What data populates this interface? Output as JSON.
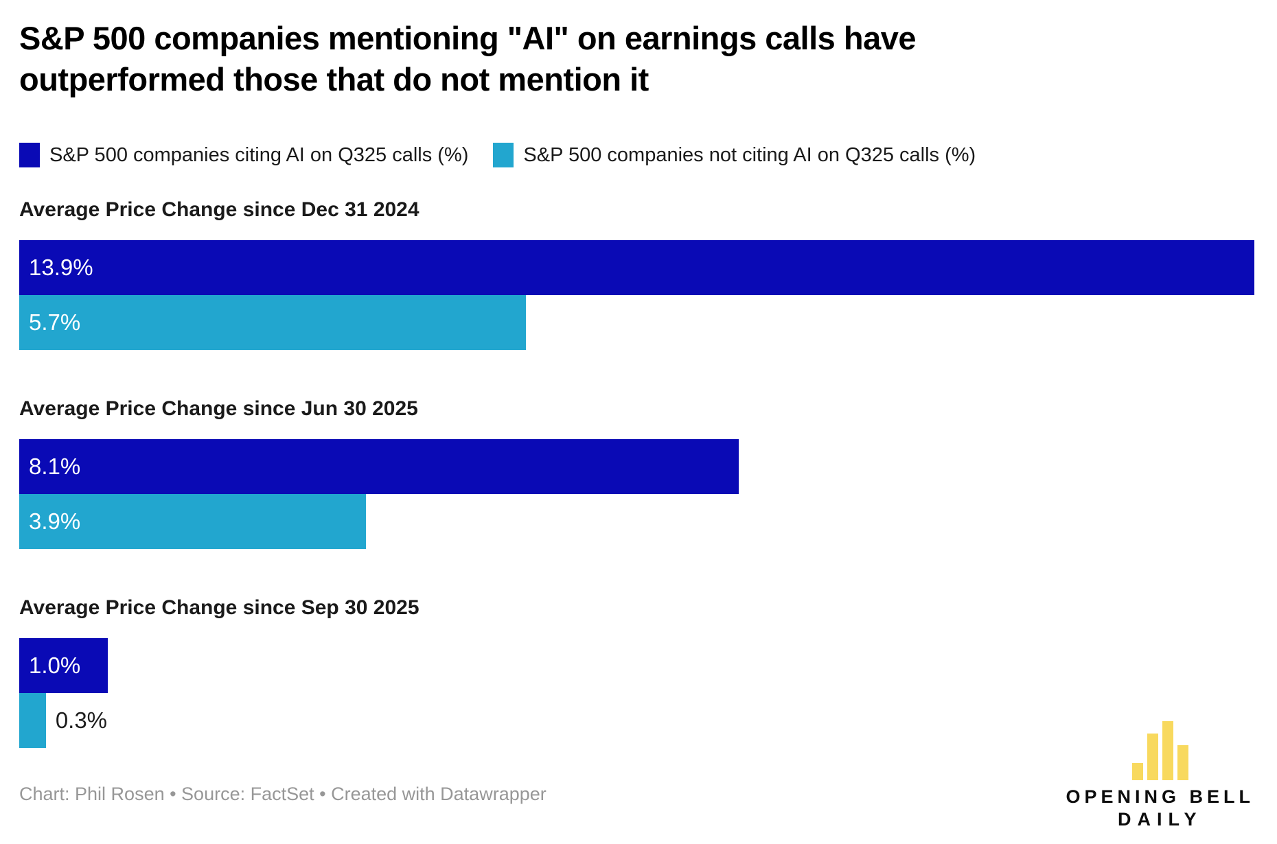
{
  "title": {
    "line1": "S&P 500 companies mentioning \"AI\" on earnings calls have",
    "line2": "outperformed those that do not mention it"
  },
  "legend": {
    "items": [
      {
        "label": "S&P 500 companies citing AI on Q325 calls (%)",
        "color": "#0A0AB5"
      },
      {
        "label": "S&P 500 companies not citing AI on Q325 calls (%)",
        "color": "#22A6CF"
      }
    ]
  },
  "chart_data": {
    "type": "bar",
    "orientation": "horizontal",
    "title": "S&P 500 companies mentioning \"AI\" on earnings calls have outperformed those that do not mention it",
    "xlim": [
      0,
      13.9
    ],
    "max_value": 13.9,
    "grid": false,
    "legend_position": "top",
    "series": [
      {
        "name": "S&P 500 companies citing AI on Q325 calls (%)",
        "color": "#0A0AB5",
        "values": [
          13.9,
          8.1,
          1.0
        ]
      },
      {
        "name": "S&P 500 companies not citing AI on Q325 calls (%)",
        "color": "#22A6CF",
        "values": [
          5.7,
          3.9,
          0.3
        ]
      }
    ],
    "groups": [
      {
        "heading": "Average Price Change since Dec 31 2024",
        "values": [
          13.9,
          5.7
        ],
        "labels": [
          "13.9%",
          "5.7%"
        ]
      },
      {
        "heading": "Average Price Change since Jun 30 2025",
        "values": [
          8.1,
          3.9
        ],
        "labels": [
          "8.1%",
          "3.9%"
        ]
      },
      {
        "heading": "Average Price Change since Sep 30 2025",
        "values": [
          1.0,
          0.3
        ],
        "labels": [
          "1.0%",
          "0.3%"
        ]
      }
    ]
  },
  "footer": {
    "credit": "Chart: Phil Rosen • Source: FactSet • Created with Datawrapper"
  },
  "logo": {
    "line1": "OPENING BELL",
    "line2": "DAILY",
    "bar_color": "#F8D95E"
  }
}
